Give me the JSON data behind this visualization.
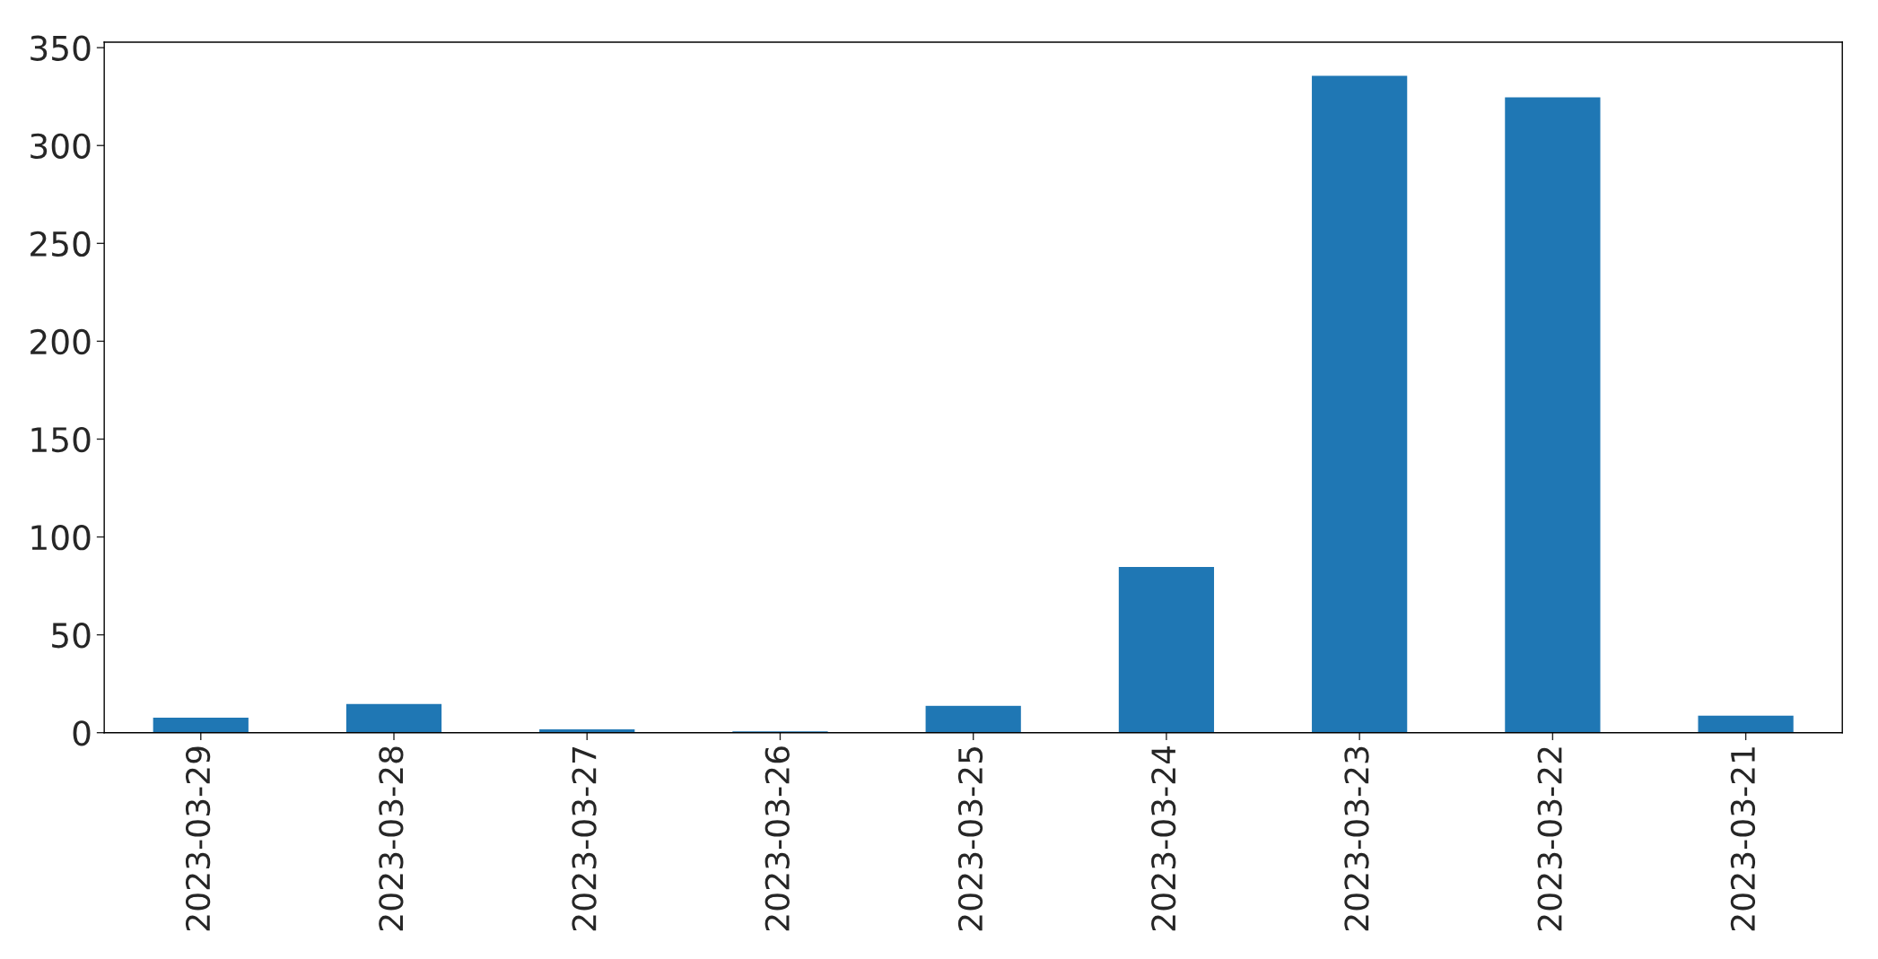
{
  "chart_data": {
    "type": "bar",
    "categories": [
      "2023-03-29",
      "2023-03-28",
      "2023-03-27",
      "2023-03-26",
      "2023-03-25",
      "2023-03-24",
      "2023-03-23",
      "2023-03-22",
      "2023-03-21"
    ],
    "values": [
      8,
      15,
      2,
      1,
      14,
      85,
      336,
      325,
      9
    ],
    "color": "#1f77b4",
    "ylim": [
      0,
      352.8
    ],
    "yticks": [
      0,
      50,
      100,
      150,
      200,
      250,
      300,
      350
    ],
    "grid": false
  }
}
